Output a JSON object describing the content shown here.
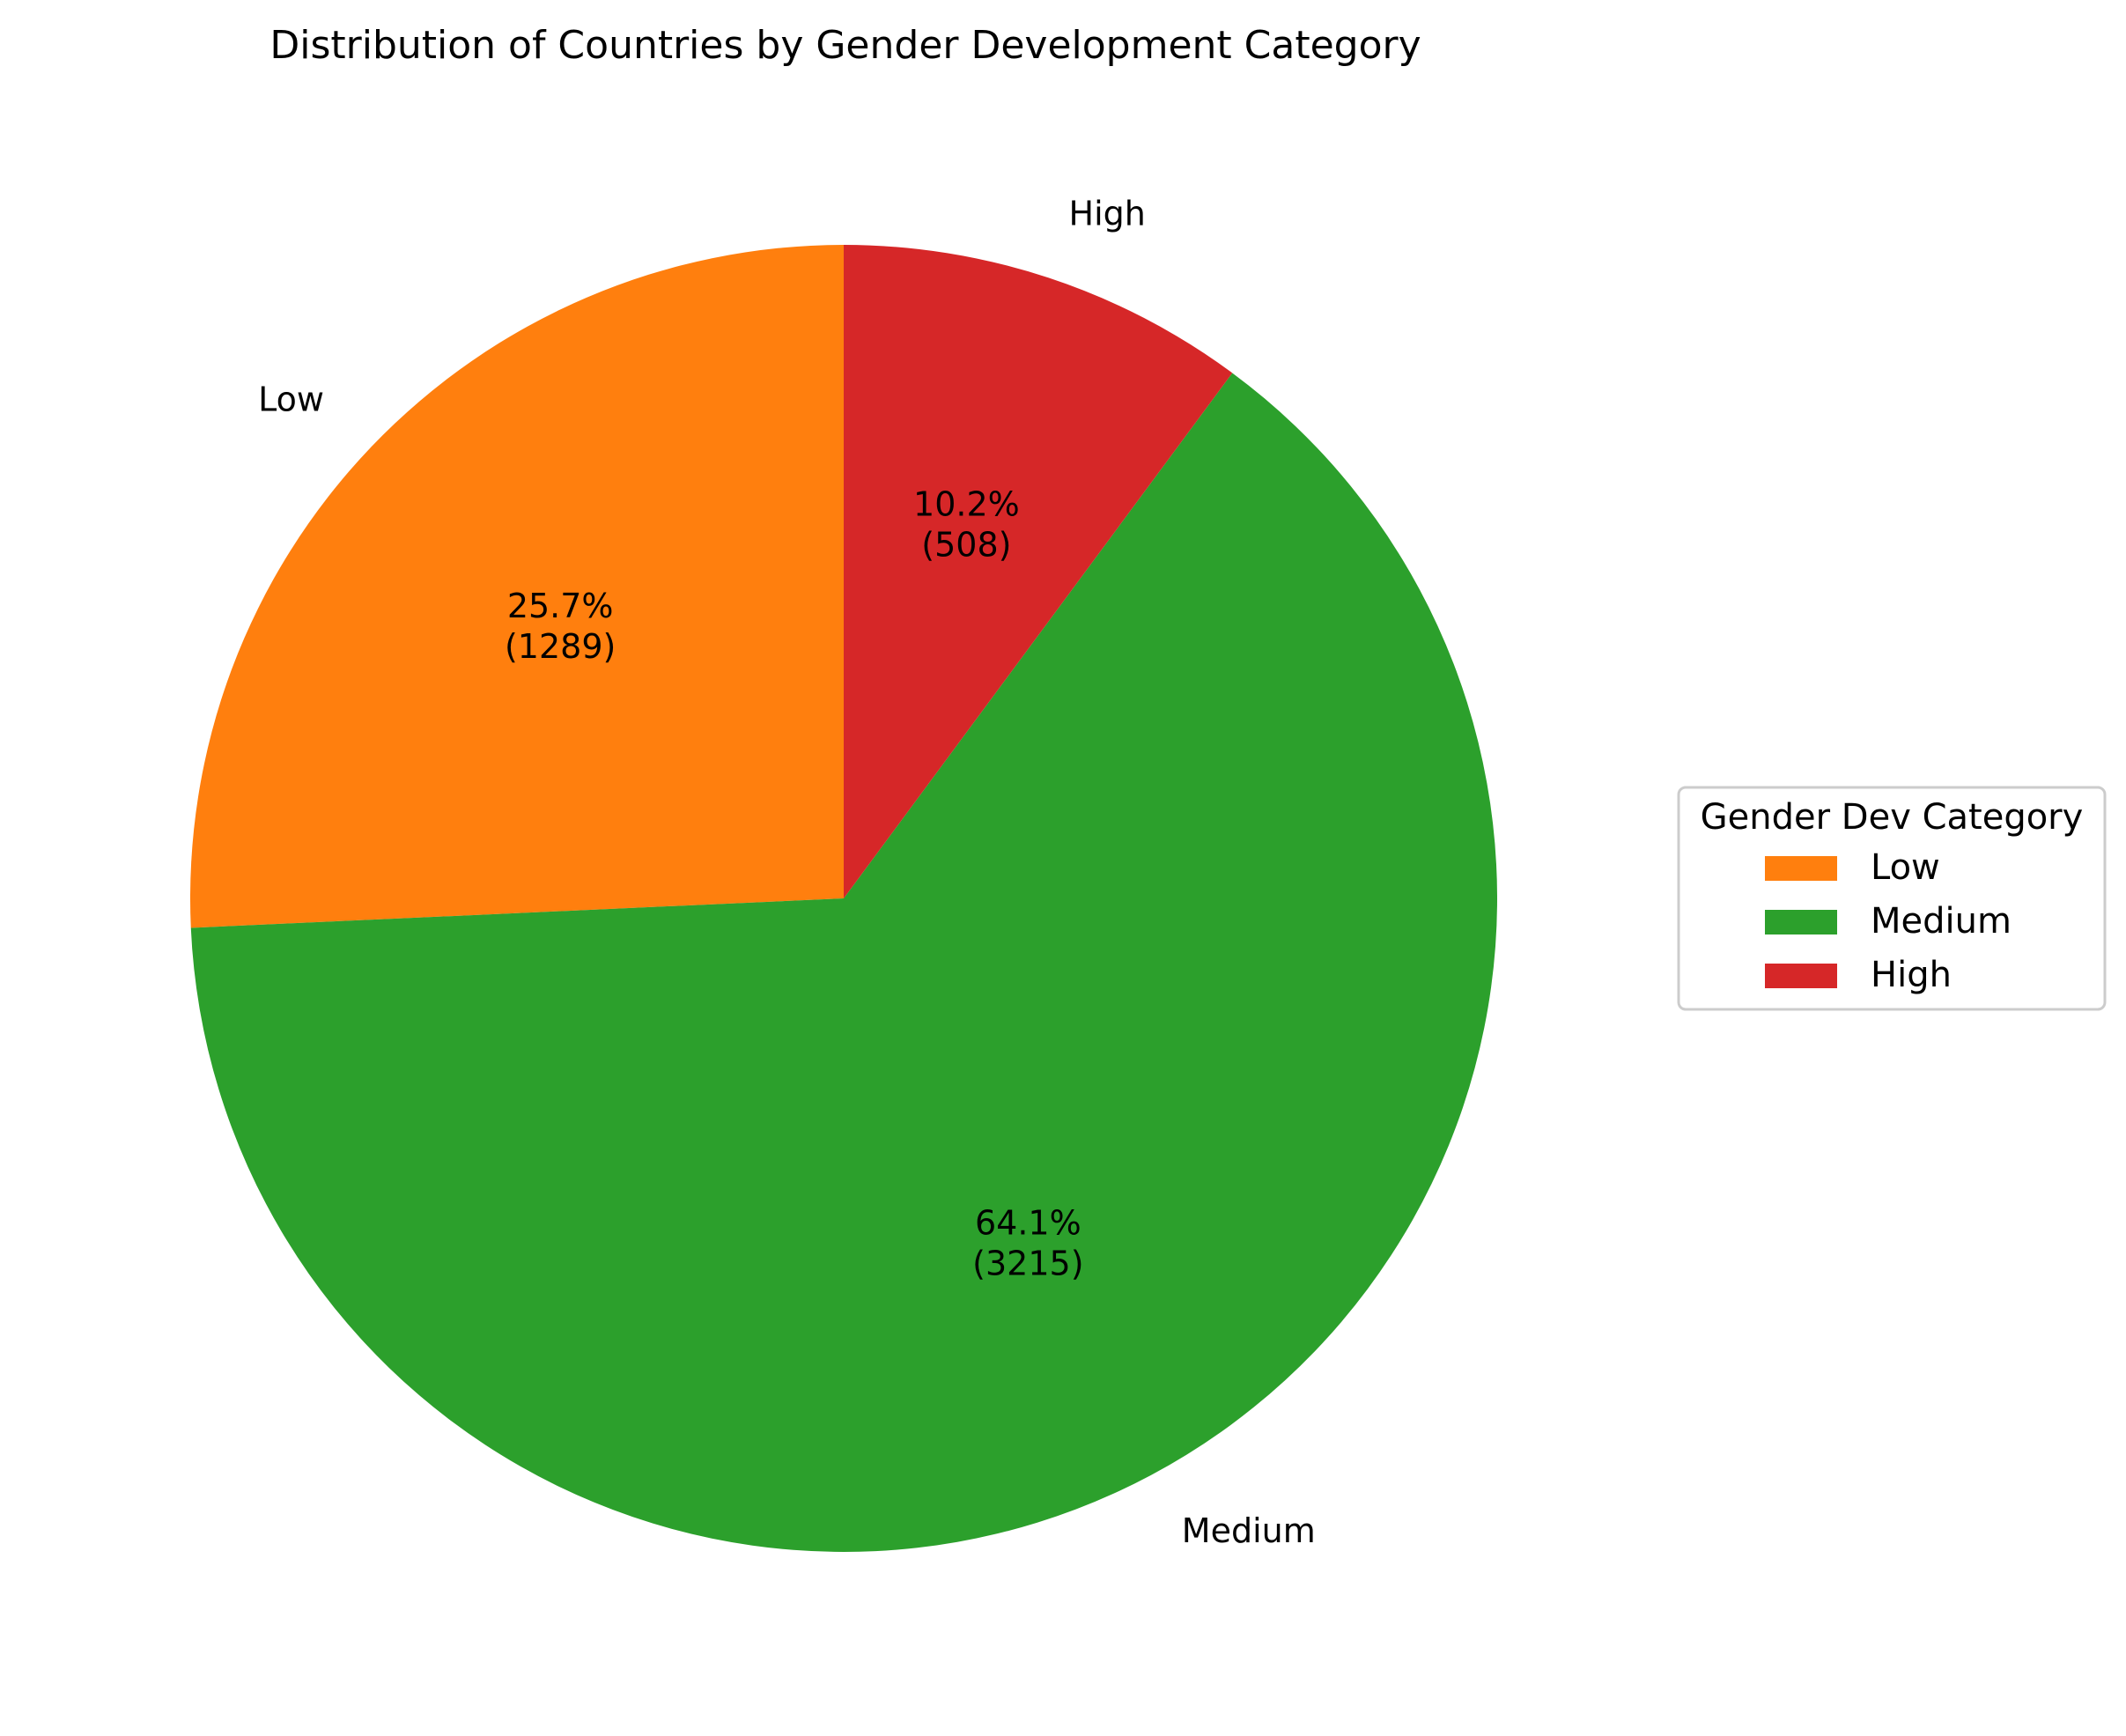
{
  "chart_data": {
    "type": "pie",
    "title": "Distribution of Countries by Gender Development Category",
    "categories": [
      "Low",
      "Medium",
      "High"
    ],
    "values": [
      1289,
      3215,
      508
    ],
    "percent_labels": [
      "25.7%",
      "64.1%",
      "10.2%"
    ],
    "count_labels": [
      "(1289)",
      "(3215)",
      "(508)"
    ],
    "colors": [
      "#ff7f0e",
      "#2ca02c",
      "#d62728"
    ],
    "start_angle_deg": 90,
    "direction": "counterclockwise",
    "legend": {
      "title": "Gender Dev Category",
      "placement": "center-right",
      "entries": [
        "Low",
        "Medium",
        "High"
      ]
    }
  }
}
